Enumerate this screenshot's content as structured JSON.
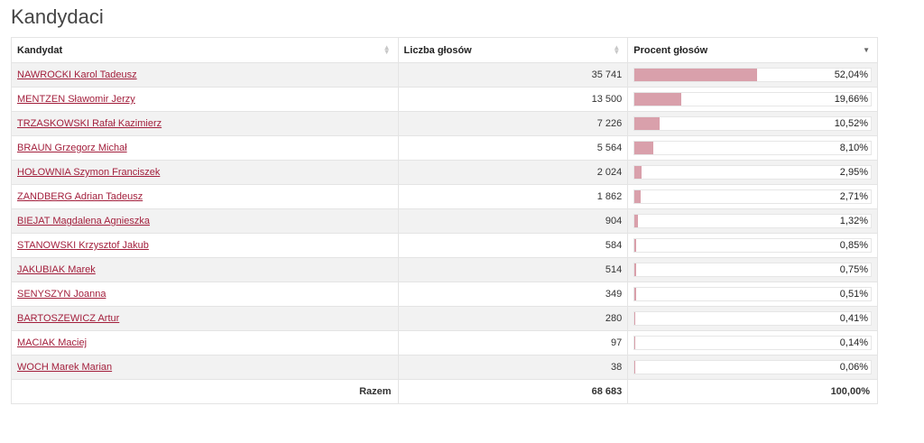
{
  "page_title": "Kandydaci",
  "headers": {
    "candidate": "Kandydat",
    "votes": "Liczba głosów",
    "percent": "Procent głosów"
  },
  "rows": [
    {
      "name": "NAWROCKI Karol Tadeusz",
      "votes": "35 741",
      "percent": "52,04%",
      "share": 0.5204
    },
    {
      "name": "MENTZEN Sławomir Jerzy",
      "votes": "13 500",
      "percent": "19,66%",
      "share": 0.1966
    },
    {
      "name": "TRZASKOWSKI Rafał Kazimierz",
      "votes": "7 226",
      "percent": "10,52%",
      "share": 0.1052
    },
    {
      "name": "BRAUN Grzegorz Michał",
      "votes": "5 564",
      "percent": "8,10%",
      "share": 0.081
    },
    {
      "name": "HOŁOWNIA Szymon Franciszek",
      "votes": "2 024",
      "percent": "2,95%",
      "share": 0.0295
    },
    {
      "name": "ZANDBERG Adrian Tadeusz",
      "votes": "1 862",
      "percent": "2,71%",
      "share": 0.0271
    },
    {
      "name": "BIEJAT Magdalena Agnieszka",
      "votes": "904",
      "percent": "1,32%",
      "share": 0.0132
    },
    {
      "name": "STANOWSKI Krzysztof Jakub",
      "votes": "584",
      "percent": "0,85%",
      "share": 0.0085
    },
    {
      "name": "JAKUBIAK Marek",
      "votes": "514",
      "percent": "0,75%",
      "share": 0.0075
    },
    {
      "name": "SENYSZYN Joanna",
      "votes": "349",
      "percent": "0,51%",
      "share": 0.0051
    },
    {
      "name": "BARTOSZEWICZ Artur",
      "votes": "280",
      "percent": "0,41%",
      "share": 0.0041
    },
    {
      "name": "MACIAK Maciej",
      "votes": "97",
      "percent": "0,14%",
      "share": 0.0014
    },
    {
      "name": "WOCH Marek Marian",
      "votes": "38",
      "percent": "0,06%",
      "share": 0.0006
    }
  ],
  "total": {
    "label": "Razem",
    "votes": "68 683",
    "percent": "100,00%"
  },
  "colors": {
    "link": "#a31f3c",
    "bar_fill": "#d9a0ab",
    "row_alt": "#f2f2f2"
  },
  "icons": {
    "sort_both": "sort-both-icon",
    "sort_desc": "sort-desc-icon"
  }
}
